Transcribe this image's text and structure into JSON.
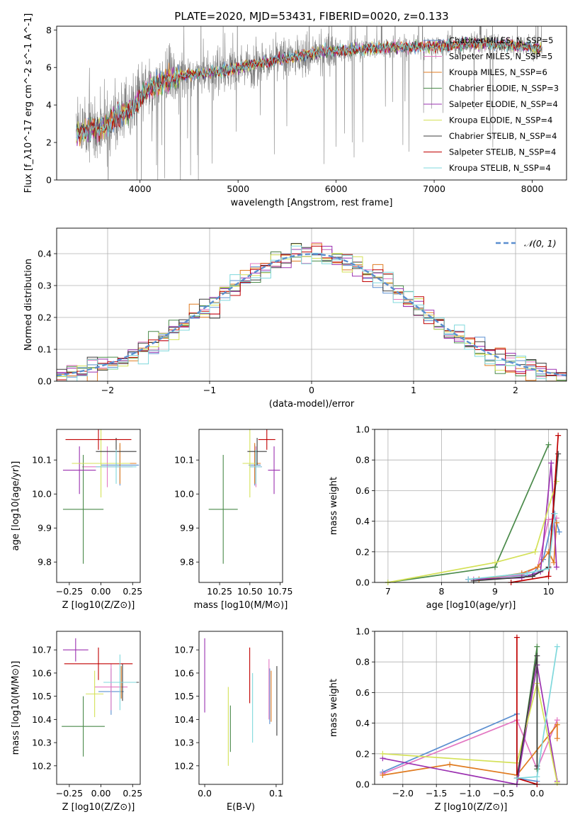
{
  "figure": {
    "title": "PLATE=2020, MJD=53431, FIBERID=0020, z=0.133"
  },
  "models": [
    {
      "name": "Chabrier MILES",
      "nssp": 5,
      "color": "#5b8fd0"
    },
    {
      "name": "Salpeter MILES",
      "nssp": 5,
      "color": "#e377c2"
    },
    {
      "name": "Kroupa MILES",
      "nssp": 6,
      "color": "#e07b20"
    },
    {
      "name": "Chabrier ELODIE",
      "nssp": 3,
      "color": "#4a8a4a"
    },
    {
      "name": "Salpeter ELODIE",
      "nssp": 4,
      "color": "#9b30b0"
    },
    {
      "name": "Kroupa ELODIE",
      "nssp": 4,
      "color": "#d4e157"
    },
    {
      "name": "Chabrier STELIB",
      "nssp": 4,
      "color": "#3d3d3d"
    },
    {
      "name": "Salpeter STELIB",
      "nssp": 4,
      "color": "#c00000"
    },
    {
      "name": "Kroupa STELIB",
      "nssp": 4,
      "color": "#7fd8dc"
    }
  ],
  "chart_data": [
    {
      "id": "spectrum",
      "type": "line",
      "xlabel": "wavelength [Angstrom, rest frame]",
      "ylabel": "Flux [f_λ10^-17 erg cm^-2 s^-1 A^-1]",
      "xlim": [
        3150,
        8350
      ],
      "ylim": [
        0,
        8.2
      ],
      "xticks": [
        4000,
        5000,
        6000,
        7000,
        8000
      ],
      "yticks": [
        0,
        2,
        4,
        6,
        8
      ],
      "data_color": "#808080",
      "legend_position": "right",
      "continuum": {
        "x": [
          3350,
          3500,
          3650,
          3800,
          3950,
          4100,
          4300,
          4500,
          4800,
          5100,
          5400,
          5700,
          6000,
          6300,
          6600,
          6900,
          7200,
          7500,
          7800,
          8100
        ],
        "y": [
          2.5,
          2.7,
          2.9,
          3.5,
          4.0,
          4.9,
          5.4,
          5.6,
          5.8,
          6.1,
          6.4,
          6.7,
          6.9,
          7.0,
          7.1,
          7.1,
          7.2,
          7.3,
          7.2,
          7.0
        ]
      },
      "grid": false
    },
    {
      "id": "residuals",
      "type": "histogram",
      "xlabel": "(data-model)/error",
      "ylabel": "Normed distribution",
      "xlim": [
        -2.5,
        2.5
      ],
      "ylim": [
        0,
        0.48
      ],
      "xticks": [
        -2,
        -1,
        0,
        1,
        2
      ],
      "yticks": [
        0.0,
        0.1,
        0.2,
        0.3,
        0.4
      ],
      "bin_width": 0.1,
      "reference_curve": {
        "label": "𝒩(0, 1)",
        "mean": 0,
        "sigma": 1,
        "color": "#5b8fd0"
      },
      "legend_position": "upper right",
      "grid": true
    },
    {
      "id": "age_vs_Z",
      "type": "errorbar",
      "xlabel": "Z [log10(Z/Z⊙)]",
      "ylabel": "age [log10(age/yr)]",
      "xlim": [
        -0.35,
        0.31
      ],
      "ylim": [
        9.74,
        10.19
      ],
      "xticks": [
        -0.25,
        0.0,
        0.25
      ],
      "yticks": [
        9.8,
        9.9,
        10.0,
        10.1
      ],
      "points": [
        {
          "model": 0,
          "x": 0.15,
          "xerr": 0.15,
          "y": 10.085,
          "yerr": 0.06
        },
        {
          "model": 1,
          "x": 0.05,
          "xerr": 0.2,
          "y": 10.08,
          "yerr": 0.06
        },
        {
          "model": 2,
          "x": 0.15,
          "xerr": 0.13,
          "y": 10.09,
          "yerr": 0.06
        },
        {
          "model": 3,
          "x": -0.14,
          "xerr": 0.16,
          "y": 9.955,
          "yerr": 0.16
        },
        {
          "model": 4,
          "x": -0.17,
          "xerr": 0.13,
          "y": 10.07,
          "yerr": 0.07
        },
        {
          "model": 5,
          "x": 0.0,
          "xerr": 0.23,
          "y": 10.09,
          "yerr": 0.1
        },
        {
          "model": 6,
          "x": 0.12,
          "xerr": 0.16,
          "y": 10.125,
          "yerr": 0.04
        },
        {
          "model": 7,
          "x": -0.02,
          "xerr": 0.26,
          "y": 10.16,
          "yerr": 0.03
        },
        {
          "model": 8,
          "x": 0.12,
          "xerr": 0.16,
          "y": 10.08,
          "yerr": 0.05
        }
      ]
    },
    {
      "id": "age_vs_mass",
      "type": "errorbar",
      "xlabel": "mass [log10(M/M⊙)]",
      "ylabel": "",
      "xlim": [
        10.08,
        10.77
      ],
      "ylim": [
        9.74,
        10.19
      ],
      "xticks": [
        10.25,
        10.5,
        10.75
      ],
      "yticks": [
        9.8,
        9.9,
        10.0,
        10.1
      ],
      "points": [
        {
          "model": 0,
          "x": 10.54,
          "xerr": 0.05,
          "y": 10.085,
          "yerr": 0.06
        },
        {
          "model": 1,
          "x": 10.55,
          "xerr": 0.05,
          "y": 10.08,
          "yerr": 0.06
        },
        {
          "model": 2,
          "x": 10.54,
          "xerr": 0.05,
          "y": 10.09,
          "yerr": 0.06
        },
        {
          "model": 3,
          "x": 10.28,
          "xerr": 0.12,
          "y": 9.955,
          "yerr": 0.16
        },
        {
          "model": 4,
          "x": 10.7,
          "xerr": 0.05,
          "y": 10.07,
          "yerr": 0.07
        },
        {
          "model": 5,
          "x": 10.5,
          "xerr": 0.06,
          "y": 10.09,
          "yerr": 0.1
        },
        {
          "model": 6,
          "x": 10.56,
          "xerr": 0.08,
          "y": 10.125,
          "yerr": 0.04
        },
        {
          "model": 7,
          "x": 10.64,
          "xerr": 0.07,
          "y": 10.16,
          "yerr": 0.03
        },
        {
          "model": 8,
          "x": 10.55,
          "xerr": 0.05,
          "y": 10.08,
          "yerr": 0.05
        }
      ]
    },
    {
      "id": "weight_vs_age",
      "type": "line",
      "xlabel": "age [log10(age/yr)]",
      "ylabel": "mass weight",
      "xlim": [
        6.75,
        10.35
      ],
      "ylim": [
        0,
        1.0
      ],
      "xticks": [
        7,
        8,
        9,
        10
      ],
      "yticks": [
        0.0,
        0.2,
        0.4,
        0.6,
        0.8,
        1.0
      ],
      "grid": true,
      "series": [
        {
          "model": 0,
          "x": [
            8.5,
            9.7,
            9.9,
            10.1,
            10.2
          ],
          "y": [
            0.02,
            0.05,
            0.15,
            0.45,
            0.33
          ]
        },
        {
          "model": 1,
          "x": [
            8.6,
            9.5,
            9.8,
            10.0,
            10.15
          ],
          "y": [
            0.02,
            0.05,
            0.1,
            0.41,
            0.42
          ]
        },
        {
          "model": 2,
          "x": [
            8.7,
            9.5,
            9.8,
            10.0,
            10.1,
            10.15
          ],
          "y": [
            0.02,
            0.06,
            0.1,
            0.2,
            0.13,
            0.39
          ]
        },
        {
          "model": 3,
          "x": [
            7.0,
            9.0,
            10.0
          ],
          "y": [
            0.0,
            0.1,
            0.9
          ]
        },
        {
          "model": 4,
          "x": [
            8.5,
            9.5,
            9.85,
            10.05,
            10.15
          ],
          "y": [
            0.02,
            0.03,
            0.07,
            0.78,
            0.1
          ]
        },
        {
          "model": 5,
          "x": [
            7.0,
            9.0,
            9.75,
            10.15
          ],
          "y": [
            0.0,
            0.13,
            0.2,
            0.66
          ]
        },
        {
          "model": 6,
          "x": [
            8.6,
            9.7,
            10.0,
            10.18
          ],
          "y": [
            0.01,
            0.04,
            0.1,
            0.84
          ]
        },
        {
          "model": 7,
          "x": [
            9.3,
            10.0,
            10.18
          ],
          "y": [
            0.0,
            0.04,
            0.96
          ]
        },
        {
          "model": 8,
          "x": [
            8.5,
            9.6,
            10.0,
            10.12
          ],
          "y": [
            0.02,
            0.06,
            0.09,
            0.45
          ]
        }
      ]
    },
    {
      "id": "mass_vs_Z",
      "type": "errorbar",
      "xlabel": "Z [log10(Z/Z⊙)]",
      "ylabel": "mass [log10(M/M⊙)]",
      "xlim": [
        -0.35,
        0.31
      ],
      "ylim": [
        10.12,
        10.78
      ],
      "xticks": [
        -0.25,
        0.0,
        0.25
      ],
      "yticks": [
        10.2,
        10.3,
        10.4,
        10.5,
        10.6,
        10.7
      ],
      "points": [
        {
          "model": 0,
          "x": 0.08,
          "xerr": 0.1,
          "y": 10.52,
          "yerr": 0.1
        },
        {
          "model": 1,
          "x": 0.08,
          "xerr": 0.13,
          "y": 10.54,
          "yerr": 0.1
        },
        {
          "model": 2,
          "x": 0.16,
          "xerr": 0.1,
          "y": 10.56,
          "yerr": 0.07
        },
        {
          "model": 3,
          "x": -0.14,
          "xerr": 0.17,
          "y": 10.37,
          "yerr": 0.13
        },
        {
          "model": 4,
          "x": -0.2,
          "xerr": 0.1,
          "y": 10.7,
          "yerr": 0.05
        },
        {
          "model": 5,
          "x": -0.05,
          "xerr": 0.07,
          "y": 10.51,
          "yerr": 0.1
        },
        {
          "model": 6,
          "x": 0.17,
          "xerr": 0.13,
          "y": 10.56,
          "yerr": 0.08
        },
        {
          "model": 7,
          "x": -0.02,
          "xerr": 0.27,
          "y": 10.64,
          "yerr": 0.07
        },
        {
          "model": 8,
          "x": 0.15,
          "xerr": 0.13,
          "y": 10.56,
          "yerr": 0.12
        }
      ]
    },
    {
      "id": "mass_vs_ebv",
      "type": "errorbar",
      "xlabel": "E(B-V)",
      "ylabel": "",
      "xlim": [
        -0.008,
        0.109
      ],
      "ylim": [
        10.12,
        10.78
      ],
      "xticks": [
        0.0,
        0.1
      ],
      "yticks": [
        10.2,
        10.3,
        10.4,
        10.5,
        10.6,
        10.7
      ],
      "points": [
        {
          "model": 0,
          "x": 0.091,
          "xerr": 0,
          "y": 10.5,
          "yerr": 0.12
        },
        {
          "model": 1,
          "x": 0.09,
          "xerr": 0,
          "y": 10.53,
          "yerr": 0.13
        },
        {
          "model": 2,
          "x": 0.093,
          "xerr": 0,
          "y": 10.5,
          "yerr": 0.11
        },
        {
          "model": 3,
          "x": 0.036,
          "xerr": 0,
          "y": 10.36,
          "yerr": 0.1
        },
        {
          "model": 4,
          "x": 0.0,
          "xerr": 0,
          "y": 10.59,
          "yerr": 0.16
        },
        {
          "model": 5,
          "x": 0.033,
          "xerr": 0,
          "y": 10.37,
          "yerr": 0.17
        },
        {
          "model": 6,
          "x": 0.101,
          "xerr": 0,
          "y": 10.48,
          "yerr": 0.15
        },
        {
          "model": 7,
          "x": 0.063,
          "xerr": 0,
          "y": 10.59,
          "yerr": 0.12
        },
        {
          "model": 8,
          "x": 0.067,
          "xerr": 0,
          "y": 10.45,
          "yerr": 0.15
        }
      ]
    },
    {
      "id": "weight_vs_Z",
      "type": "line",
      "xlabel": "Z [log10(Z/Z⊙)]",
      "ylabel": "mass weight",
      "xlim": [
        -2.42,
        0.45
      ],
      "ylim": [
        0,
        1.0
      ],
      "xticks": [
        -2.0,
        -1.5,
        -1.0,
        -0.5,
        0.0
      ],
      "yticks": [
        0.0,
        0.2,
        0.4,
        0.6,
        0.8,
        1.0
      ],
      "grid": true,
      "series": [
        {
          "model": 0,
          "x": [
            -2.3,
            -0.3,
            -0.3,
            0.0
          ],
          "y": [
            0.08,
            0.46,
            0.04,
            0.02
          ]
        },
        {
          "model": 1,
          "x": [
            -2.3,
            -0.3,
            0.0,
            0.3
          ],
          "y": [
            0.07,
            0.42,
            0.1,
            0.42
          ]
        },
        {
          "model": 2,
          "x": [
            -2.3,
            -1.3,
            -0.3,
            0.3,
            0.3
          ],
          "y": [
            0.06,
            0.13,
            0.06,
            0.39,
            0.3
          ]
        },
        {
          "model": 3,
          "x": [
            -0.3,
            0.0,
            0.0
          ],
          "y": [
            0.0,
            0.9,
            0.1
          ]
        },
        {
          "model": 4,
          "x": [
            -2.3,
            -0.3,
            0.0,
            0.3
          ],
          "y": [
            0.17,
            0.0,
            0.78,
            0.02
          ]
        },
        {
          "model": 5,
          "x": [
            -2.3,
            -0.3,
            0.0,
            0.3
          ],
          "y": [
            0.2,
            0.14,
            0.66,
            0.01
          ]
        },
        {
          "model": 6,
          "x": [
            -0.3,
            0.0,
            0.0
          ],
          "y": [
            0.04,
            0.84,
            0.12
          ]
        },
        {
          "model": 7,
          "x": [
            -0.3,
            -0.3,
            0.0
          ],
          "y": [
            0.96,
            0.04,
            0.0
          ]
        },
        {
          "model": 8,
          "x": [
            -0.3,
            0.0,
            0.3
          ],
          "y": [
            0.04,
            0.05,
            0.9
          ]
        }
      ]
    }
  ]
}
